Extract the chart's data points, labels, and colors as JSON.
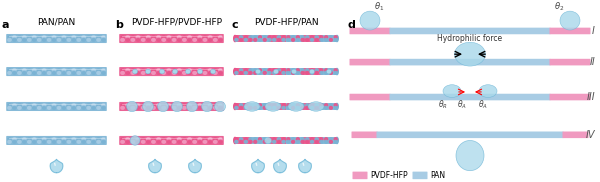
{
  "bg_color": "#f0f4f8",
  "pan_color": "#7ab3d4",
  "pvdf_color": "#e8538a",
  "pan_light": "#a8cce4",
  "pvdf_light": "#f09ac0",
  "water_color": "#a8d8ea",
  "water_edge": "#6db5d6",
  "title_a": "PAN/PAN",
  "title_b": "PVDF-HFP/PVDF-HFP",
  "title_c": "PVDF-HFP/PAN",
  "title_d": "d",
  "label_a": "a",
  "label_b": "b",
  "label_c": "c",
  "roman_I": "I",
  "roman_II": "II",
  "roman_III": "III",
  "roman_IV": "IV",
  "hydrophilic_text": "Hydrophilic force",
  "legend_pvdf": "PVDF-HFP",
  "legend_pan": "PAN",
  "figsize": [
    6.0,
    1.82
  ],
  "dpi": 100
}
